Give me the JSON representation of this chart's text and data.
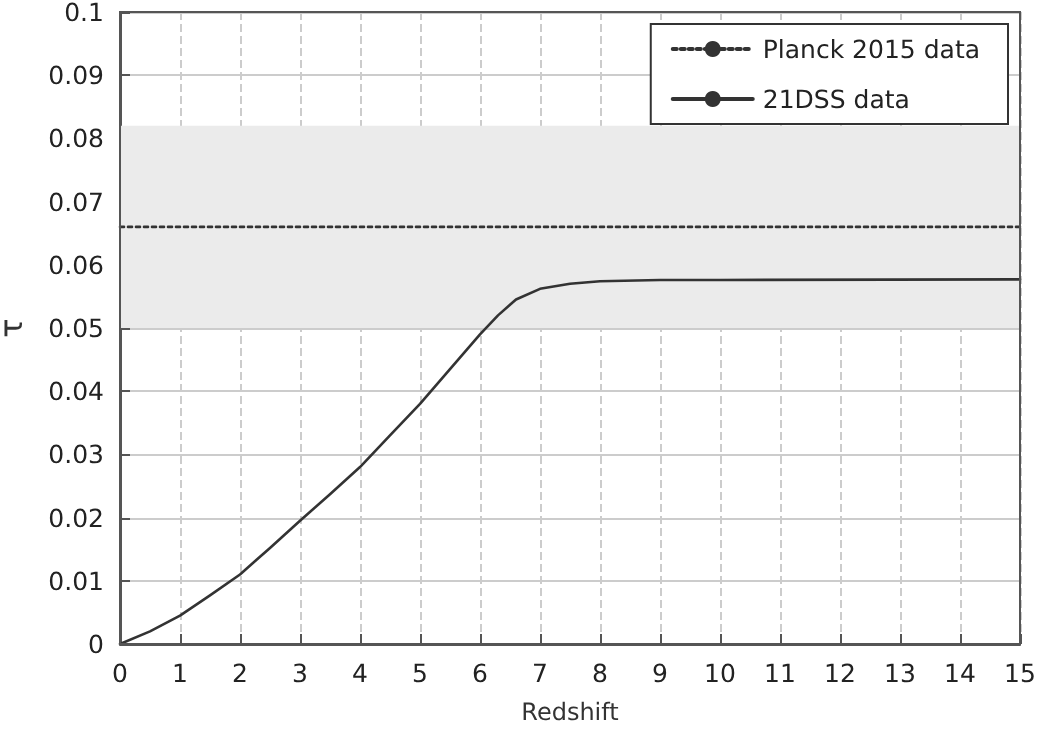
{
  "chart_data": {
    "type": "line",
    "xlabel": "Redshift",
    "ylabel": "τ",
    "xlim": [
      0,
      15
    ],
    "xticks": [
      0,
      1,
      2,
      3,
      4,
      5,
      6,
      7,
      8,
      9,
      10,
      11,
      12,
      13,
      14,
      15
    ],
    "ylim": [
      0,
      0.1
    ],
    "yticks": [
      0,
      0.01,
      0.02,
      0.03,
      0.04,
      0.05,
      0.06,
      0.07,
      0.08,
      0.09,
      0.1
    ],
    "grid": true,
    "legend": "top right",
    "marker": "none",
    "bands": [
      {
        "axis": "y",
        "from": 0.05,
        "to": 0.082,
        "color": "#ebebeb"
      }
    ],
    "series": [
      {
        "name": "Planck 2015 data",
        "color": "#333333",
        "line_style": "dotted",
        "x": [
          0,
          15
        ],
        "values": [
          0.066,
          0.066
        ]
      },
      {
        "name": "21DSS data",
        "color": "#333333",
        "line_style": "solid",
        "x": [
          0,
          0.5,
          1,
          1.5,
          2,
          2.5,
          3,
          3.5,
          4,
          4.5,
          5,
          5.5,
          6,
          6.3,
          6.6,
          7,
          7.5,
          8,
          9,
          10,
          15
        ],
        "values": [
          0,
          0.002,
          0.0045,
          0.0077,
          0.011,
          0.0152,
          0.0195,
          0.0237,
          0.028,
          0.033,
          0.038,
          0.0435,
          0.049,
          0.052,
          0.0545,
          0.0562,
          0.057,
          0.0574,
          0.0576,
          0.0576,
          0.0577
        ]
      }
    ]
  }
}
